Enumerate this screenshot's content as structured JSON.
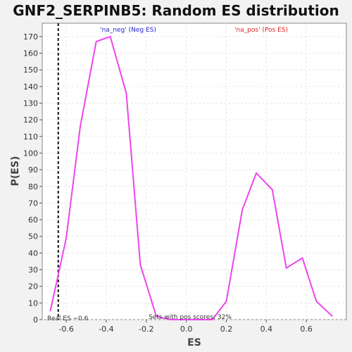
{
  "chart_data": {
    "type": "line",
    "title": "GNF2_SERPINB5: Random ES distribution",
    "xlabel": "ES",
    "ylabel": "P(ES)",
    "xlim": [
      -0.72,
      0.8
    ],
    "ylim": [
      0,
      178
    ],
    "xticks": [
      -0.6,
      -0.4,
      -0.2,
      0.0,
      0.2,
      0.4,
      0.6
    ],
    "xtick_labels": [
      "-0.6",
      "-0.4",
      "-0.2",
      "0.0",
      "0.2",
      "0.4",
      "0.6"
    ],
    "yticks": [
      0,
      10,
      20,
      30,
      40,
      50,
      60,
      70,
      80,
      90,
      100,
      110,
      120,
      130,
      140,
      150,
      160,
      170
    ],
    "ytick_labels": [
      "0",
      "10",
      "20",
      "30",
      "40",
      "50",
      "60",
      "70",
      "80",
      "90",
      "100",
      "110",
      "120",
      "130",
      "140",
      "150",
      "160",
      "170"
    ],
    "grid": true,
    "series": [
      {
        "color": "#ee44ee",
        "x": [
          -0.68,
          -0.6,
          -0.53,
          -0.45,
          -0.38,
          -0.3,
          -0.23,
          -0.15,
          -0.08,
          0.0,
          0.05,
          0.13,
          0.2,
          0.28,
          0.35,
          0.43,
          0.5,
          0.58,
          0.65,
          0.73
        ],
        "y": [
          5,
          49,
          116,
          167,
          170,
          136,
          33,
          2,
          0,
          0,
          0,
          0,
          11,
          66,
          88,
          78,
          31,
          37,
          11,
          2
        ]
      }
    ],
    "real_es": {
      "x": -0.64,
      "label": "Real ES −0.6"
    },
    "legend_neg": {
      "text": "'na_neg' (Neg ES)",
      "color": "#2222cc"
    },
    "legend_pos": {
      "text": "'na_pos' (Pos ES)",
      "color": "#dd2222"
    },
    "footnote": "Sets with pos scores: 32%"
  }
}
